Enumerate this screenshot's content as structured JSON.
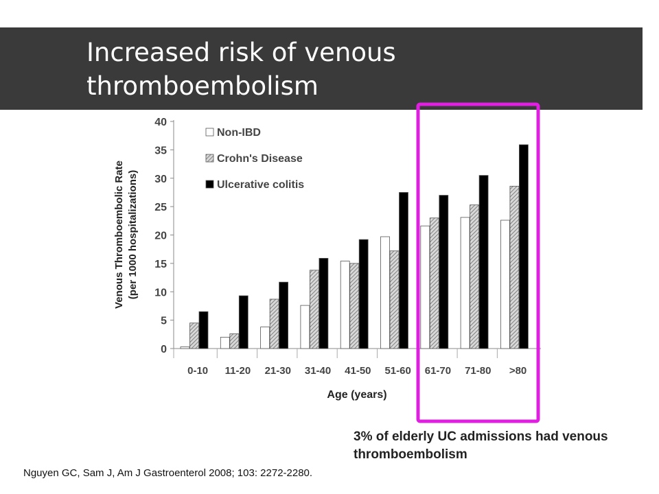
{
  "slide": {
    "title": "Increased risk of venous thromboembolism",
    "callout": "3% of elderly UC admissions had venous thromboembolism",
    "citation": "Nguyen GC, Sam J, Am J Gastroenterol 2008; 103: 2272-2280.",
    "highlight_color": "#e020e0",
    "title_bar_color": "#3a3a3a"
  },
  "chart_data": {
    "type": "bar",
    "categories": [
      "0-10",
      "11-20",
      "21-30",
      "31-40",
      "41-50",
      "51-60",
      "61-70",
      "71-80",
      ">80"
    ],
    "series": [
      {
        "name": "Non-IBD",
        "fill": "white",
        "values": [
          0.3,
          2.0,
          3.8,
          7.6,
          15.4,
          19.7,
          21.6,
          23.1,
          22.6
        ]
      },
      {
        "name": "Crohn's Disease",
        "fill": "hatched",
        "values": [
          4.5,
          2.6,
          8.7,
          13.8,
          15.0,
          17.2,
          23.0,
          25.3,
          28.6
        ]
      },
      {
        "name": "Ulcerative colitis",
        "fill": "black",
        "values": [
          6.5,
          9.3,
          11.7,
          15.9,
          19.2,
          27.5,
          27.0,
          30.5,
          35.9
        ]
      }
    ],
    "ylim": [
      0,
      40
    ],
    "yticks": [
      "0",
      "5",
      "10",
      "15",
      "20",
      "25",
      "30",
      "35",
      "40"
    ],
    "xlabel": "Age (years)",
    "ylabel": "Venous Thromboembolic Rate",
    "ylabel2": "(per 1000 hospitalizations)",
    "legend_position": "top-left",
    "highlighted_categories": [
      "61-70",
      "71-80",
      ">80"
    ]
  }
}
